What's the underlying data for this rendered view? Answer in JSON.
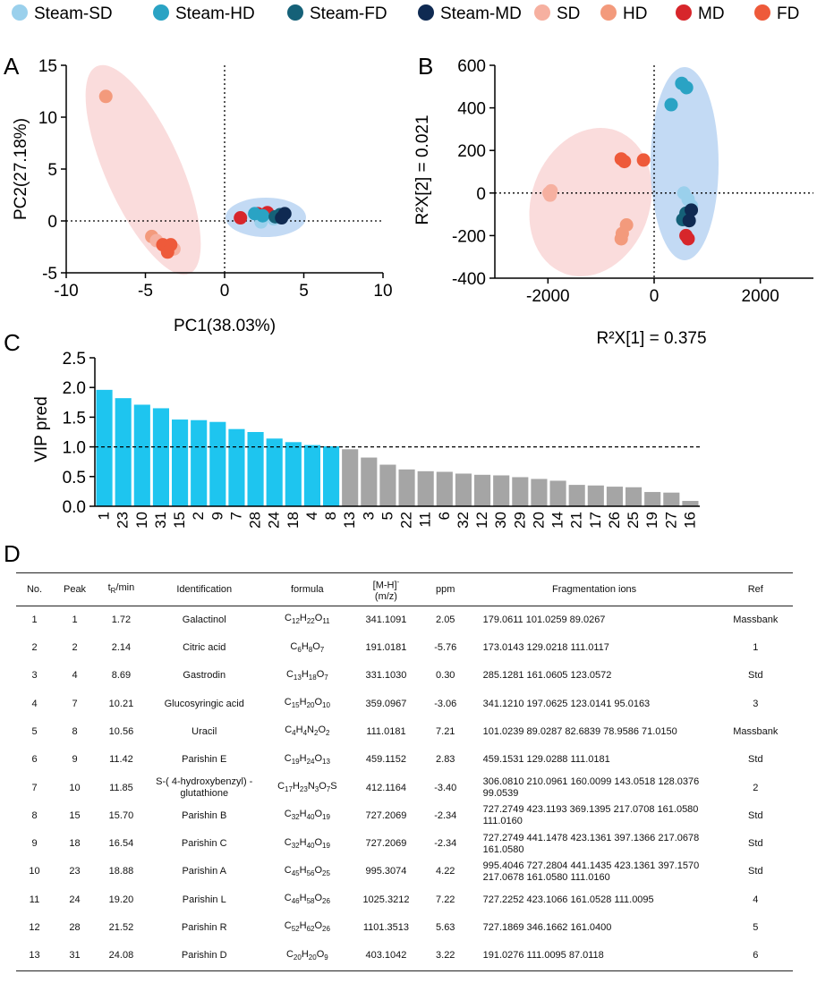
{
  "legend": [
    {
      "label": "Steam-SD",
      "color": "#9ad0ec"
    },
    {
      "label": "Steam-HD",
      "color": "#2aa3c4"
    },
    {
      "label": "Steam-FD",
      "color": "#156178"
    },
    {
      "label": "Steam-MD",
      "color": "#0f2a52"
    },
    {
      "label": "SD",
      "color": "#f6b0a0"
    },
    {
      "label": "HD",
      "color": "#f39a7c"
    },
    {
      "label": "MD",
      "color": "#d7262b"
    },
    {
      "label": "FD",
      "color": "#ee5a3a"
    }
  ],
  "panels": {
    "a": "A",
    "b": "B",
    "c": "C",
    "d": "D"
  },
  "pca": {
    "xlabel": "PC1(38.03%)",
    "ylabel": "PC2(27.18%)",
    "xlim": [
      -10,
      10
    ],
    "ylim": [
      -5,
      15
    ],
    "xticks": [
      "-10",
      "-5",
      "0",
      "5",
      "10"
    ],
    "yticks": [
      "-5",
      "0",
      "5",
      "10",
      "15"
    ],
    "points": [
      {
        "group": "HD",
        "x": -7.5,
        "y": 12.0
      },
      {
        "group": "HD",
        "x": -4.6,
        "y": -1.5
      },
      {
        "group": "SD",
        "x": -4.3,
        "y": -1.9
      },
      {
        "group": "SD",
        "x": -3.2,
        "y": -2.7
      },
      {
        "group": "FD",
        "x": -3.9,
        "y": -2.3
      },
      {
        "group": "FD",
        "x": -3.4,
        "y": -2.3
      },
      {
        "group": "FD",
        "x": -3.6,
        "y": -3.0
      },
      {
        "group": "MD",
        "x": 1.0,
        "y": 0.3
      },
      {
        "group": "MD",
        "x": 2.1,
        "y": 0.7
      },
      {
        "group": "MD",
        "x": 2.7,
        "y": 0.8
      },
      {
        "group": "Steam-SD",
        "x": 2.3,
        "y": -0.1
      },
      {
        "group": "Steam-SD",
        "x": 3.1,
        "y": 0.2
      },
      {
        "group": "Steam-HD",
        "x": 1.9,
        "y": 0.7
      },
      {
        "group": "Steam-HD",
        "x": 2.4,
        "y": 0.5
      },
      {
        "group": "Steam-FD",
        "x": 3.2,
        "y": 0.4
      },
      {
        "group": "Steam-FD",
        "x": 3.5,
        "y": 0.6
      },
      {
        "group": "Steam-MD",
        "x": 3.6,
        "y": 0.3
      },
      {
        "group": "Steam-MD",
        "x": 3.8,
        "y": 0.7
      }
    ]
  },
  "pls": {
    "xlabel": "R²X[1] = 0.375",
    "ylabel": "R²X[2] = 0.021",
    "xlim": [
      -3000,
      3000
    ],
    "ylim": [
      -400,
      600
    ],
    "xticks": [
      "-2000",
      "0",
      "2000"
    ],
    "yticks": [
      "-400",
      "-200",
      "0",
      "200",
      "400",
      "600"
    ],
    "points": [
      {
        "group": "SD",
        "x": -1980,
        "y": 0
      },
      {
        "group": "SD",
        "x": -1940,
        "y": 10
      },
      {
        "group": "SD",
        "x": -1960,
        "y": -10
      },
      {
        "group": "HD",
        "x": -600,
        "y": -190
      },
      {
        "group": "HD",
        "x": -520,
        "y": -150
      },
      {
        "group": "HD",
        "x": -620,
        "y": -215
      },
      {
        "group": "FD",
        "x": -620,
        "y": 160
      },
      {
        "group": "FD",
        "x": -560,
        "y": 148
      },
      {
        "group": "FD",
        "x": -200,
        "y": 155
      },
      {
        "group": "Steam-HD",
        "x": 520,
        "y": 515
      },
      {
        "group": "Steam-HD",
        "x": 610,
        "y": 495
      },
      {
        "group": "Steam-HD",
        "x": 320,
        "y": 415
      },
      {
        "group": "Steam-SD",
        "x": 560,
        "y": 0
      },
      {
        "group": "Steam-SD",
        "x": 700,
        "y": -60
      },
      {
        "group": "Steam-SD",
        "x": 640,
        "y": -30
      },
      {
        "group": "Steam-FD",
        "x": 600,
        "y": -95
      },
      {
        "group": "Steam-FD",
        "x": 540,
        "y": -125
      },
      {
        "group": "Steam-MD",
        "x": 700,
        "y": -80
      },
      {
        "group": "Steam-MD",
        "x": 660,
        "y": -130
      },
      {
        "group": "MD",
        "x": 600,
        "y": -200
      },
      {
        "group": "MD",
        "x": 640,
        "y": -215
      }
    ]
  },
  "chart_data": {
    "type": "bar",
    "ylabel": "VIP pred",
    "ylim": [
      0,
      2.5
    ],
    "yticks": [
      "0.0",
      "0.5",
      "1.0",
      "1.5",
      "2.0",
      "2.5"
    ],
    "threshold": 1.0,
    "highlight_color": "#1ec5ef",
    "other_color": "#a5a5a5",
    "categories": [
      "1",
      "23",
      "10",
      "31",
      "15",
      "2",
      "9",
      "7",
      "28",
      "24",
      "18",
      "4",
      "8",
      "13",
      "3",
      "5",
      "22",
      "11",
      "6",
      "32",
      "12",
      "30",
      "29",
      "20",
      "14",
      "21",
      "17",
      "26",
      "25",
      "19",
      "27",
      "16"
    ],
    "values": [
      1.96,
      1.82,
      1.71,
      1.65,
      1.46,
      1.45,
      1.42,
      1.3,
      1.25,
      1.14,
      1.08,
      1.03,
      1.01,
      0.96,
      0.82,
      0.7,
      0.62,
      0.59,
      0.58,
      0.55,
      0.53,
      0.52,
      0.49,
      0.46,
      0.43,
      0.36,
      0.35,
      0.33,
      0.32,
      0.24,
      0.23,
      0.09
    ]
  },
  "table": {
    "headers": {
      "no": "No.",
      "peak": "Peak",
      "tr_main": "t",
      "tr_sub": "R",
      "tr_tail": "/min",
      "ident": "Identification",
      "formula": "formula",
      "mh_main": "[M-H]",
      "mh_sup": "-",
      "mh_unit": "(m/z)",
      "ppm": "ppm",
      "frag": "Fragmentation ions",
      "ref": "Ref"
    },
    "rows": [
      {
        "no": "1",
        "peak": "1",
        "tr": "1.72",
        "ident": "Galactinol",
        "formula": [
          [
            "C",
            "12"
          ],
          [
            "H",
            "22"
          ],
          [
            "O",
            "11"
          ]
        ],
        "mz": "341.1091",
        "ppm": "2.05",
        "frag": "179.0611 101.0259 89.0267",
        "ref": "Massbank"
      },
      {
        "no": "2",
        "peak": "2",
        "tr": "2.14",
        "ident": "Citric acid",
        "formula": [
          [
            "C",
            "6"
          ],
          [
            "H",
            "8"
          ],
          [
            "O",
            "7"
          ]
        ],
        "mz": "191.0181",
        "ppm": "-5.76",
        "frag": "173.0143 129.0218 111.0117",
        "ref": "1"
      },
      {
        "no": "3",
        "peak": "4",
        "tr": "8.69",
        "ident": "Gastrodin",
        "formula": [
          [
            "C",
            "13"
          ],
          [
            "H",
            "18"
          ],
          [
            "O",
            "7"
          ]
        ],
        "mz": "331.1030",
        "ppm": "0.30",
        "frag": "285.1281 161.0605 123.0572",
        "ref": "Std"
      },
      {
        "no": "4",
        "peak": "7",
        "tr": "10.21",
        "ident": "Glucosyringic acid",
        "formula": [
          [
            "C",
            "15"
          ],
          [
            "H",
            "20"
          ],
          [
            "O",
            "10"
          ]
        ],
        "mz": "359.0967",
        "ppm": "-3.06",
        "frag": "341.1210 197.0625 123.0141 95.0163",
        "ref": "3"
      },
      {
        "no": "5",
        "peak": "8",
        "tr": "10.56",
        "ident": "Uracil",
        "formula": [
          [
            "C",
            "4"
          ],
          [
            "H",
            "4"
          ],
          [
            "N",
            "2"
          ],
          [
            "O",
            "2"
          ]
        ],
        "mz": "111.0181",
        "ppm": "7.21",
        "frag": "101.0239 89.0287 82.6839 78.9586 71.0150",
        "ref": "Massbank"
      },
      {
        "no": "6",
        "peak": "9",
        "tr": "11.42",
        "ident": "Parishin E",
        "formula": [
          [
            "C",
            "19"
          ],
          [
            "H",
            "24"
          ],
          [
            "O",
            "13"
          ]
        ],
        "mz": "459.1152",
        "ppm": "2.83",
        "frag": "459.1531 129.0288 111.0181",
        "ref": "Std"
      },
      {
        "no": "7",
        "peak": "10",
        "tr": "11.85",
        "ident": "S-( 4-hydroxybenzyl) -glutathione",
        "formula": [
          [
            "C",
            "17"
          ],
          [
            "H",
            "23"
          ],
          [
            "N",
            "3"
          ],
          [
            "O",
            "7"
          ],
          [
            "S",
            ""
          ]
        ],
        "mz": "412.1164",
        "ppm": "-3.40",
        "frag": "306.0810 210.0961 160.0099 143.0518 128.0376 99.0539",
        "ref": "2"
      },
      {
        "no": "8",
        "peak": "15",
        "tr": "15.70",
        "ident": "Parishin B",
        "formula": [
          [
            "C",
            "32"
          ],
          [
            "H",
            "40"
          ],
          [
            "O",
            "19"
          ]
        ],
        "mz": "727.2069",
        "ppm": "-2.34",
        "frag": "727.2749 423.1193 369.1395 217.0708 161.0580 111.0160",
        "ref": "Std"
      },
      {
        "no": "9",
        "peak": "18",
        "tr": "16.54",
        "ident": "Parishin C",
        "formula": [
          [
            "C",
            "32"
          ],
          [
            "H",
            "40"
          ],
          [
            "O",
            "19"
          ]
        ],
        "mz": "727.2069",
        "ppm": "-2.34",
        "frag": "727.2749 441.1478 423.1361 397.1366 217.0678 161.0580",
        "ref": "Std"
      },
      {
        "no": "10",
        "peak": "23",
        "tr": "18.88",
        "ident": "Parishin A",
        "formula": [
          [
            "C",
            "45"
          ],
          [
            "H",
            "56"
          ],
          [
            "O",
            "25"
          ]
        ],
        "mz": "995.3074",
        "ppm": "4.22",
        "frag": "995.4046 727.2804 441.1435 423.1361 397.1570 217.0678 161.0580 111.0160",
        "ref": "Std"
      },
      {
        "no": "11",
        "peak": "24",
        "tr": "19.20",
        "ident": "Parishin L",
        "formula": [
          [
            "C",
            "46"
          ],
          [
            "H",
            "58"
          ],
          [
            "O",
            "26"
          ]
        ],
        "mz": "1025.3212",
        "ppm": "7.22",
        "frag": "727.2252 423.1066 161.0528 111.0095",
        "ref": "4"
      },
      {
        "no": "12",
        "peak": "28",
        "tr": "21.52",
        "ident": "Parishin R",
        "formula": [
          [
            "C",
            "52"
          ],
          [
            "H",
            "62"
          ],
          [
            "O",
            "26"
          ]
        ],
        "mz": "1101.3513",
        "ppm": "5.63",
        "frag": "727.1869 346.1662 161.0400",
        "ref": "5"
      },
      {
        "no": "13",
        "peak": "31",
        "tr": "24.08",
        "ident": "Parishin D",
        "formula": [
          [
            "C",
            "20"
          ],
          [
            "H",
            "20"
          ],
          [
            "O",
            "9"
          ]
        ],
        "mz": "403.1042",
        "ppm": "3.22",
        "frag": "191.0276 111.0095 87.0118",
        "ref": "6"
      }
    ]
  }
}
